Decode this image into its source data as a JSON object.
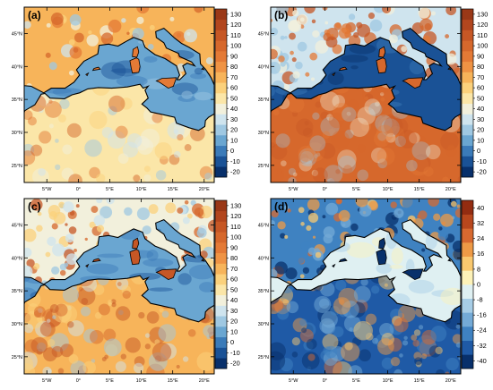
{
  "figure": {
    "panels": [
      {
        "label": "(a)",
        "lat_ticks": [
          "45°N",
          "40°N",
          "35°N",
          "30°N",
          "25°N"
        ],
        "lon_ticks": [
          "5°W",
          "0°",
          "5°E",
          "10°E",
          "15°E",
          "20°E"
        ],
        "colorbar_ticks": [
          "130",
          "120",
          "110",
          "100",
          "90",
          "80",
          "70",
          "60",
          "50",
          "40",
          "30",
          "20",
          "10",
          "0",
          "-10",
          "-20"
        ],
        "colormap": "sequential-positive"
      },
      {
        "label": "(b)",
        "lat_ticks": [
          "45°N",
          "40°N",
          "35°N",
          "30°N",
          "25°N"
        ],
        "lon_ticks": [
          "5°W",
          "0°",
          "5°E",
          "10°E",
          "15°E",
          "20°E"
        ],
        "colorbar_ticks": [
          "130",
          "120",
          "110",
          "100",
          "90",
          "80",
          "70",
          "60",
          "50",
          "40",
          "30",
          "20",
          "10",
          "0",
          "-10",
          "-20"
        ],
        "colormap": "sequential-positive"
      },
      {
        "label": "(c)",
        "lat_ticks": [
          "45°N",
          "40°N",
          "35°N",
          "30°N",
          "25°N"
        ],
        "lon_ticks": [
          "5°W",
          "0°",
          "5°E",
          "10°E",
          "15°E",
          "20°E"
        ],
        "colorbar_ticks": [
          "130",
          "120",
          "110",
          "100",
          "90",
          "80",
          "70",
          "60",
          "50",
          "40",
          "30",
          "20",
          "10",
          "0",
          "-10",
          "-20"
        ],
        "colormap": "sequential-positive"
      },
      {
        "label": "(d)",
        "lat_ticks": [
          "45°N",
          "40°N",
          "35°N",
          "30°N",
          "25°N"
        ],
        "lon_ticks": [
          "5°W",
          "0°",
          "5°E",
          "10°E",
          "15°E",
          "20°E"
        ],
        "colorbar_ticks": [
          "40",
          "32",
          "24",
          "16",
          "8",
          "0",
          "-8",
          "-16",
          "-24",
          "-32",
          "-40"
        ],
        "colormap": "diverging"
      }
    ]
  },
  "colors": {
    "sequential": [
      "#08306b",
      "#1a5296",
      "#3b7bb9",
      "#6aa6d1",
      "#9fc8e2",
      "#cfe4ee",
      "#f2f0dc",
      "#fbe6a8",
      "#fbd17c",
      "#f7b45a",
      "#ef9344",
      "#e47a36",
      "#d6682c",
      "#c65725",
      "#b2461e",
      "#9a3817"
    ],
    "diverging": [
      "#08306b",
      "#1f5aa6",
      "#3f82c1",
      "#74aad6",
      "#a7cde6",
      "#dff0f2",
      "#fdf2b8",
      "#f9c86f",
      "#ee9a46",
      "#d76930",
      "#b8471d",
      "#932c11"
    ],
    "coastline": "#000000"
  }
}
